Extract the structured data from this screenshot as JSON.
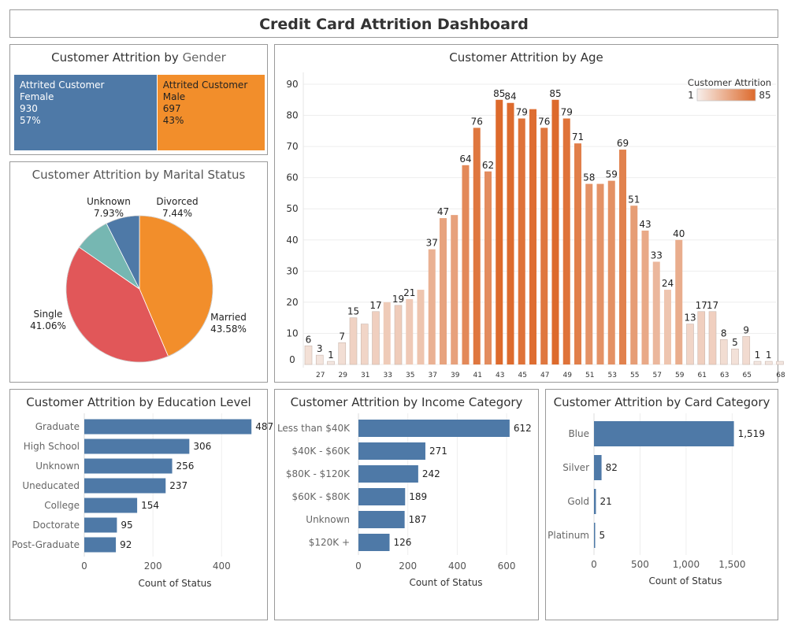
{
  "dashboard": {
    "title": "Credit Card Attrition Dashboard"
  },
  "gender": {
    "title_prefix": "Customer Attrition by ",
    "title_suffix": "Gender",
    "cells": [
      {
        "l1": "Attrited Customer",
        "l2": "Female",
        "count": "930",
        "pct": "57%",
        "color": "#4E79A7",
        "text_color": "#ffffff"
      },
      {
        "l1": "Attrited Customer",
        "l2": "Male",
        "count": "697",
        "pct": "43%",
        "color": "#F28E2B",
        "text_color": "#222222"
      }
    ]
  },
  "marital": {
    "title": "Customer Attrition by Marital Status",
    "labels": {
      "unknown_name": "Unknown",
      "unknown_pct": "7.93%",
      "divorced_name": "Divorced",
      "divorced_pct": "7.44%",
      "single_name": "Single",
      "single_pct": "41.06%",
      "married_name": "Married",
      "married_pct": "43.58%"
    }
  },
  "age": {
    "title": "Customer Attrition by Age",
    "legend_title": "Customer Attrition",
    "legend_min": "1",
    "legend_max": "85"
  },
  "education": {
    "title": "Customer Attrition by Education Level"
  },
  "income": {
    "title": "Customer Attrition by Income Category"
  },
  "card": {
    "title": "Customer Attrition by Card Category"
  },
  "chart_data": [
    {
      "type": "treemap",
      "title": "Customer Attrition by Gender",
      "categories": [
        "Female",
        "Male"
      ],
      "values": [
        930,
        697
      ],
      "percent": [
        57,
        43
      ]
    },
    {
      "type": "pie",
      "title": "Customer Attrition by Marital Status",
      "categories": [
        "Married",
        "Single",
        "Unknown",
        "Divorced"
      ],
      "percent": [
        43.58,
        41.06,
        7.93,
        7.44
      ],
      "colors": [
        "#F28E2B",
        "#E15759",
        "#76B7B2",
        "#4E79A7"
      ]
    },
    {
      "type": "bar",
      "title": "Customer Attrition by Age",
      "x": [
        26,
        27,
        28,
        29,
        30,
        31,
        32,
        33,
        34,
        35,
        36,
        37,
        38,
        39,
        40,
        41,
        42,
        43,
        44,
        45,
        46,
        47,
        48,
        49,
        50,
        51,
        52,
        53,
        54,
        55,
        56,
        57,
        58,
        59,
        60,
        61,
        62,
        63,
        64,
        65,
        66,
        67,
        68
      ],
      "x_tick_labels": [
        "27",
        "29",
        "31",
        "33",
        "35",
        "37",
        "39",
        "41",
        "43",
        "45",
        "47",
        "49",
        "51",
        "53",
        "55",
        "57",
        "59",
        "61",
        "63",
        "65",
        "68"
      ],
      "values": [
        6,
        3,
        1,
        7,
        15,
        13,
        17,
        20,
        19,
        21,
        24,
        37,
        47,
        48,
        64,
        76,
        62,
        85,
        84,
        79,
        82,
        76,
        85,
        79,
        71,
        58,
        58,
        59,
        69,
        51,
        43,
        33,
        24,
        40,
        13,
        17,
        17,
        8,
        5,
        9,
        1,
        1,
        1
      ],
      "labeled": [
        true,
        true,
        true,
        true,
        true,
        false,
        true,
        false,
        true,
        true,
        false,
        true,
        true,
        false,
        true,
        true,
        true,
        true,
        true,
        true,
        false,
        true,
        true,
        true,
        true,
        true,
        false,
        true,
        true,
        true,
        true,
        true,
        true,
        true,
        true,
        true,
        true,
        true,
        true,
        true,
        true,
        true,
        false
      ],
      "ylim": [
        0,
        90
      ],
      "yticks": [
        0,
        10,
        20,
        30,
        40,
        50,
        60,
        70,
        80,
        90
      ],
      "color_scale": [
        "#F4E7E1",
        "#DD6A2C"
      ],
      "grid": true,
      "legend": "top-right"
    },
    {
      "type": "bar",
      "orientation": "horizontal",
      "title": "Customer Attrition by Education Level",
      "categories": [
        "Graduate",
        "High School",
        "Unknown",
        "Uneducated",
        "College",
        "Doctorate",
        "Post-Graduate"
      ],
      "values": [
        487,
        306,
        256,
        237,
        154,
        95,
        92
      ],
      "value_labels": [
        "487",
        "306",
        "256",
        "237",
        "154",
        "95",
        "92"
      ],
      "xlabel": "Count of Status",
      "xlim": [
        0,
        560
      ],
      "xticks": [
        0,
        200,
        400
      ],
      "color": "#4E79A7"
    },
    {
      "type": "bar",
      "orientation": "horizontal",
      "title": "Customer Attrition by Income Category",
      "categories": [
        "Less than $40K",
        "$40K - $60K",
        "$80K - $120K",
        "$60K - $80K",
        "Unknown",
        "$120K +"
      ],
      "values": [
        612,
        271,
        242,
        189,
        187,
        126
      ],
      "value_labels": [
        "612",
        "271",
        "242",
        "189",
        "187",
        "126"
      ],
      "xlabel": "Count of Status",
      "xlim": [
        0,
        740
      ],
      "xticks": [
        0,
        200,
        400,
        600
      ],
      "color": "#4E79A7"
    },
    {
      "type": "bar",
      "orientation": "horizontal",
      "title": "Customer Attrition by Card Category",
      "categories": [
        "Blue",
        "Silver",
        "Gold",
        "Platinum"
      ],
      "values": [
        1519,
        82,
        21,
        5
      ],
      "value_labels": [
        "1,519",
        "82",
        "21",
        "5"
      ],
      "xlabel": "Count of Status",
      "xlim": [
        0,
        1950
      ],
      "xticks": [
        0,
        500,
        1000,
        1500
      ],
      "color": "#4E79A7"
    }
  ]
}
